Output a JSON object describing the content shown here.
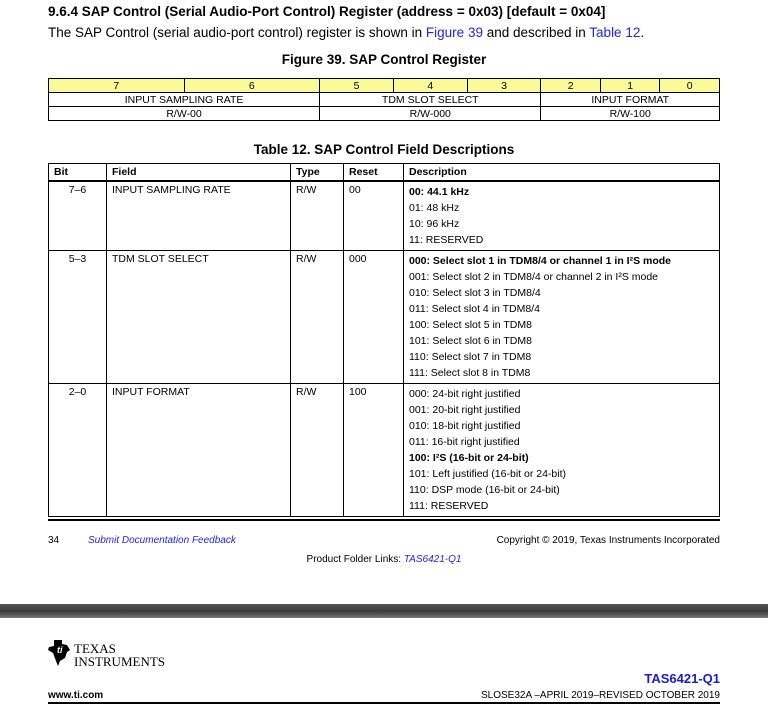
{
  "heading": "9.6.4   SAP Control (Serial Audio-Port Control) Register (address = 0x03) [default = 0x04]",
  "intro": {
    "pre": "The SAP Control (serial audio-port control) register is shown in ",
    "link1": "Figure 39",
    "mid": " and described in ",
    "link2": "Table 12",
    "post": "."
  },
  "figure_caption": "Figure 39.  SAP Control Register",
  "register": {
    "bits": [
      "7",
      "6",
      "5",
      "4",
      "3",
      "2",
      "1",
      "0"
    ],
    "fields": [
      {
        "name": "INPUT SAMPLING RATE",
        "span": 2,
        "access": "R/W-00"
      },
      {
        "name": "TDM SLOT SELECT",
        "span": 3,
        "access": "R/W-000"
      },
      {
        "name": "INPUT FORMAT",
        "span": 3,
        "access": "R/W-100"
      }
    ]
  },
  "table_caption": "Table 12. SAP Control Field Descriptions",
  "table": {
    "headers": [
      "Bit",
      "Field",
      "Type",
      "Reset",
      "Description"
    ],
    "rows": [
      {
        "bit": "7–6",
        "field": "INPUT SAMPLING RATE",
        "type": "R/W",
        "reset": "00",
        "desc": [
          {
            "t": "00: 44.1 kHz",
            "b": true
          },
          {
            "t": "01: 48 kHz"
          },
          {
            "t": "10: 96 kHz"
          },
          {
            "t": "11: RESERVED"
          }
        ]
      },
      {
        "bit": "5–3",
        "field": "TDM SLOT SELECT",
        "type": "R/W",
        "reset": "000",
        "desc": [
          {
            "t": "000: Select slot 1 in TDM8/4 or channel 1 in I²S mode",
            "b": true
          },
          {
            "t": "001: Select slot 2 in TDM8/4 or channel 2 in I²S mode"
          },
          {
            "t": "010: Select slot 3 in TDM8/4"
          },
          {
            "t": "011: Select slot 4 in TDM8/4"
          },
          {
            "t": "100: Select slot 5 in TDM8"
          },
          {
            "t": "101: Select slot 6 in TDM8"
          },
          {
            "t": "110: Select slot 7 in TDM8"
          },
          {
            "t": "111: Select slot 8 in TDM8"
          }
        ]
      },
      {
        "bit": "2–0",
        "field": "INPUT FORMAT",
        "type": "R/W",
        "reset": "100",
        "desc": [
          {
            "t": "000: 24-bit right justified"
          },
          {
            "t": "001: 20-bit right justified"
          },
          {
            "t": "010: 18-bit right justified"
          },
          {
            "t": "011: 16-bit right justified"
          },
          {
            "t": "100: I²S (16-bit or 24-bit)",
            "b": true
          },
          {
            "t": "101: Left justified (16-bit or 24-bit)"
          },
          {
            "t": "110: DSP mode (16-bit or 24-bit)"
          },
          {
            "t": "111: RESERVED"
          }
        ]
      }
    ]
  },
  "footer": {
    "page": "34",
    "feedback": "Submit Documentation Feedback",
    "copyright": "Copyright © 2019, Texas Instruments Incorporated",
    "folder_label": "Product Folder Links: ",
    "folder_link": "TAS6421-Q1"
  },
  "header2": {
    "logo_line1": "TEXAS",
    "logo_line2": "INSTRUMENTS",
    "part": "TAS6421-Q1",
    "site": "www.ti.com",
    "docnum": "SLOSE32A –APRIL 2019–REVISED OCTOBER 2019"
  },
  "colors": {
    "link": "#2222ee",
    "bits_row": "#fafa99"
  }
}
